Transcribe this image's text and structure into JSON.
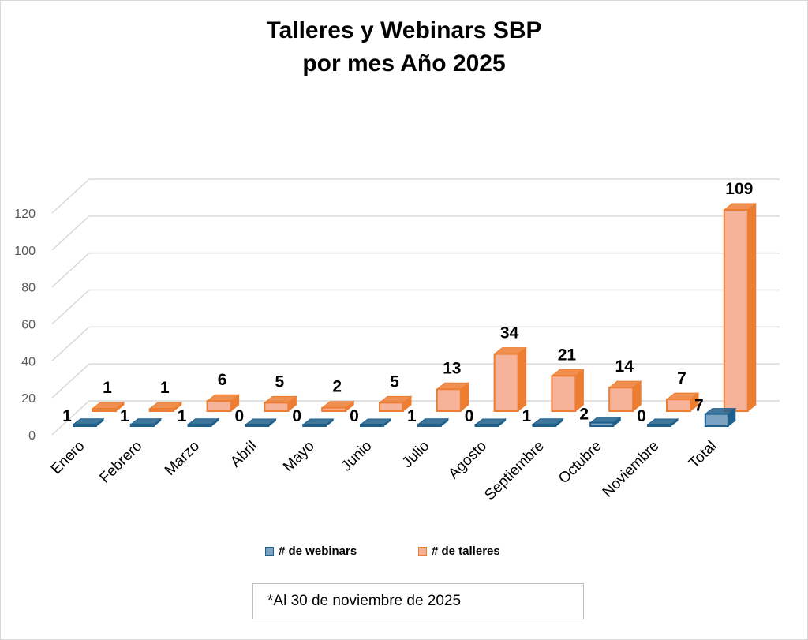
{
  "title": [
    "Talleres y Webinars SBP",
    "por mes Año 2025"
  ],
  "footnote": "*Al 30 de noviembre de 2025",
  "chart_data": {
    "type": "bar",
    "title": "Talleres y Webinars SBP por mes Año 2025",
    "categories": [
      "Enero",
      "Febrero",
      "Marzo",
      "Abril",
      "Mayo",
      "Junio",
      "Julio",
      "Agosto",
      "Septiembre",
      "Octubre",
      "Noviembre",
      "Total"
    ],
    "series": [
      {
        "name": "# de webinars",
        "values": [
          1,
          1,
          1,
          0,
          0,
          0,
          1,
          0,
          1,
          2,
          0,
          7
        ],
        "color": "#7da3c3",
        "edge": "#1f5f8b"
      },
      {
        "name": "# de talleres",
        "values": [
          1,
          1,
          6,
          5,
          2,
          5,
          13,
          34,
          21,
          14,
          7,
          109
        ],
        "color": "#f7b29a",
        "edge": "#ed7d31"
      }
    ],
    "ylim": [
      0,
      120
    ],
    "yticks": [
      0,
      20,
      40,
      60,
      80,
      100,
      120
    ],
    "grid": true,
    "legend": "bottom",
    "style": "3d-clustered-column"
  }
}
